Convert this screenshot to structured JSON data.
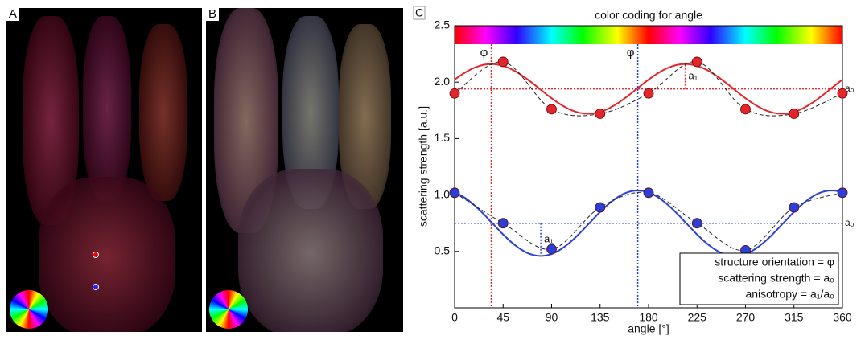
{
  "images": [
    {
      "label": "A"
    },
    {
      "label": "B"
    }
  ],
  "chart_data": {
    "type": "line",
    "panel_label": "C",
    "title": "color coding for angle",
    "xlabel": "angle [°]",
    "ylabel": "scattering strength [a.u.]",
    "x": [
      0,
      45,
      90,
      135,
      180,
      225,
      270,
      315,
      360
    ],
    "xlim": [
      0,
      360
    ],
    "xticks": [
      0,
      45,
      90,
      135,
      180,
      225,
      270,
      315,
      360
    ],
    "ylim": [
      0,
      2.5
    ],
    "yticks": [
      0.5,
      {
        "value": 1,
        "label": "1.0"
      },
      1.5,
      {
        "value": 2,
        "label": "2.0"
      },
      2.5
    ],
    "series": [
      {
        "color": "#e3262b",
        "values": [
          1.9,
          2.18,
          1.76,
          1.72,
          1.9,
          2.18,
          1.76,
          1.72,
          1.9
        ],
        "fit": {
          "a0": 1.94,
          "a1": 0.22,
          "phi": 34
        },
        "labels": {
          "phi": "φ",
          "a0": "a₀",
          "a1": "a₁"
        }
      },
      {
        "color": "#2a3fd8",
        "values": [
          1.02,
          0.75,
          0.52,
          0.89,
          1.02,
          0.75,
          0.51,
          0.89,
          1.02
        ],
        "fit": {
          "a0": 0.75,
          "a1": 0.29,
          "phi": 170
        },
        "labels": {
          "phi": "φ",
          "a0": "a₀",
          "a1": "a₁"
        }
      }
    ],
    "annotation": [
      "structure orientation = φ",
      "scattering strength = a₀",
      "anisotropy = a₁/a₀"
    ]
  }
}
